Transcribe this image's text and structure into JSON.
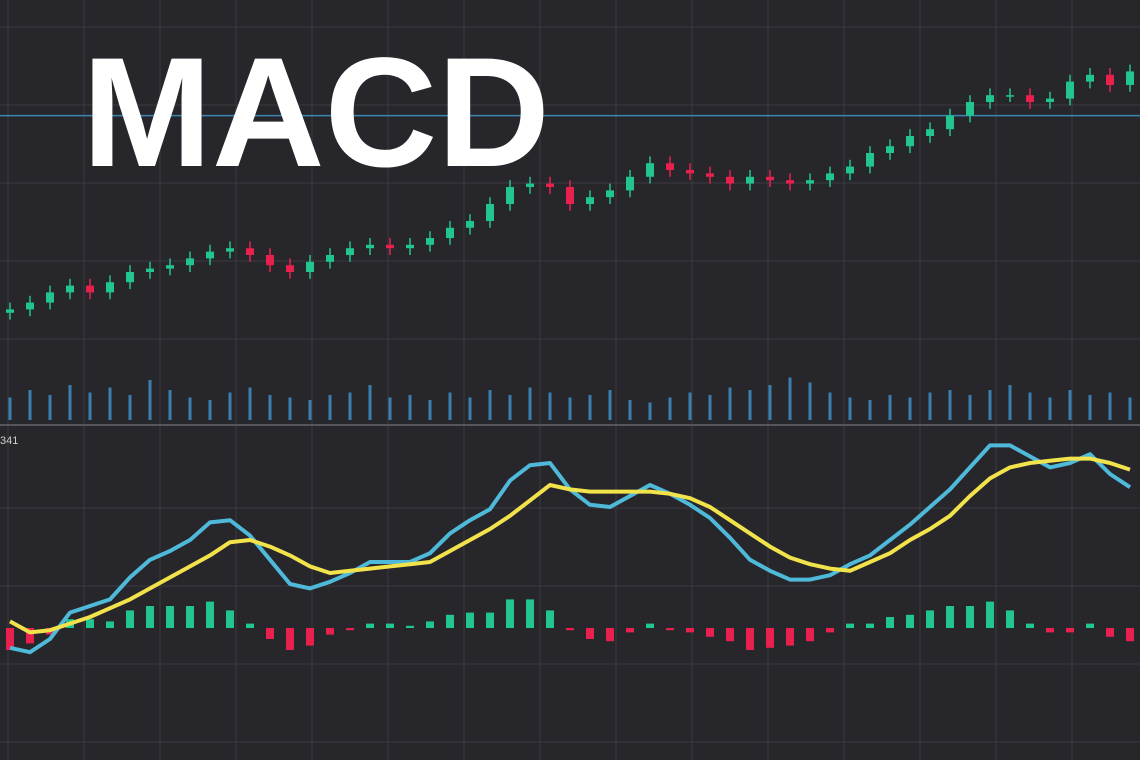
{
  "chart_data": [
    {
      "type": "candlestick",
      "title": "MACD",
      "open": [
        8,
        9,
        11,
        14,
        16,
        14,
        17,
        20,
        21,
        22,
        24,
        26,
        27,
        25,
        22,
        20,
        23,
        25,
        27,
        28,
        27,
        28,
        30,
        33,
        35,
        40,
        45,
        46,
        45,
        40,
        42,
        44,
        48,
        52,
        50,
        49,
        48,
        46,
        48,
        47,
        46,
        47,
        49,
        51,
        55,
        57,
        60,
        62,
        66,
        70,
        72,
        72,
        70,
        71,
        76,
        78,
        75
      ],
      "high": [
        11,
        13,
        16,
        18,
        18,
        19,
        22,
        23,
        24,
        26,
        28,
        29,
        29,
        27,
        24,
        25,
        27,
        29,
        30,
        30,
        30,
        32,
        35,
        37,
        42,
        47,
        48,
        48,
        47,
        44,
        46,
        50,
        54,
        54,
        52,
        51,
        50,
        50,
        50,
        49,
        49,
        51,
        53,
        57,
        59,
        62,
        64,
        68,
        72,
        74,
        74,
        74,
        73,
        78,
        80,
        80,
        81
      ],
      "low": [
        6,
        7,
        9,
        12,
        12,
        12,
        15,
        18,
        19,
        20,
        22,
        24,
        23,
        20,
        18,
        18,
        21,
        23,
        25,
        25,
        25,
        26,
        28,
        31,
        33,
        38,
        43,
        43,
        38,
        38,
        40,
        42,
        46,
        48,
        47,
        46,
        44,
        44,
        45,
        44,
        44,
        45,
        47,
        49,
        53,
        55,
        58,
        60,
        64,
        68,
        70,
        68,
        68,
        69,
        74,
        73,
        73
      ],
      "close": [
        9,
        11,
        14,
        16,
        14,
        17,
        20,
        21,
        22,
        24,
        26,
        27,
        25,
        22,
        20,
        23,
        25,
        27,
        28,
        27,
        28,
        30,
        33,
        35,
        40,
        45,
        46,
        45,
        40,
        42,
        44,
        48,
        52,
        50,
        49,
        48,
        46,
        48,
        47,
        46,
        47,
        49,
        51,
        55,
        57,
        60,
        62,
        66,
        70,
        72,
        72,
        70,
        71,
        76,
        78,
        75,
        79
      ],
      "up_color": "#22c48f",
      "down_color": "#e8204e",
      "level_line": {
        "value": 66,
        "color": "#3b86b0"
      },
      "ylim": [
        0,
        100
      ]
    },
    {
      "type": "bar",
      "values": [
        45,
        60,
        50,
        70,
        55,
        65,
        50,
        80,
        60,
        45,
        40,
        55,
        65,
        50,
        45,
        40,
        50,
        55,
        70,
        45,
        50,
        40,
        55,
        45,
        60,
        50,
        65,
        55,
        45,
        50,
        60,
        40,
        35,
        45,
        55,
        50,
        65,
        60,
        70,
        85,
        75,
        55,
        45,
        40,
        50,
        45,
        55,
        60,
        50,
        60,
        70,
        55,
        45,
        60,
        50,
        55,
        45
      ],
      "color": "#3a7fae",
      "ylim": [
        0,
        100
      ]
    },
    {
      "type": "macd",
      "label": "341",
      "series": [
        {
          "color": "#4fb9d9",
          "values": [
            -9,
            -11,
            -5,
            7,
            10,
            13,
            23,
            31,
            35,
            40,
            48,
            49,
            42,
            31,
            20,
            18,
            21,
            25,
            30,
            30,
            30,
            34,
            43,
            49,
            54,
            67,
            74,
            75,
            63,
            56,
            55,
            60,
            65,
            61,
            56,
            50,
            41,
            31,
            26,
            22,
            22,
            24,
            29,
            33,
            40,
            47,
            55,
            63,
            73,
            83,
            83,
            78,
            73,
            75,
            79,
            70,
            64
          ]
        },
        {
          "color": "#f2e24b",
          "values": [
            3,
            -2,
            -1,
            2,
            5,
            9,
            13,
            18,
            23,
            28,
            33,
            39,
            40,
            37,
            33,
            28,
            25,
            26,
            27,
            28,
            29,
            30,
            35,
            40,
            45,
            51,
            58,
            65,
            63,
            62,
            62,
            62,
            62,
            61,
            59,
            55,
            49,
            43,
            37,
            32,
            29,
            27,
            26,
            30,
            34,
            40,
            45,
            51,
            60,
            68,
            73,
            75,
            76,
            77,
            77,
            75,
            72
          ]
        }
      ],
      "histogram": {
        "values": [
          -10,
          -7,
          -3,
          4,
          4,
          3,
          8,
          10,
          10,
          10,
          12,
          8,
          2,
          -5,
          -10,
          -8,
          -3,
          -1,
          2,
          2,
          1,
          3,
          6,
          7,
          7,
          13,
          13,
          8,
          -1,
          -5,
          -6,
          -2,
          2,
          -1,
          -2,
          -4,
          -6,
          -10,
          -9,
          -8,
          -6,
          -2,
          2,
          2,
          5,
          6,
          8,
          10,
          10,
          12,
          8,
          2,
          -2,
          -2,
          2,
          -4,
          -6
        ],
        "up_color": "#22c48f",
        "down_color": "#e8204e"
      },
      "ylim": [
        -60,
        90
      ]
    }
  ]
}
